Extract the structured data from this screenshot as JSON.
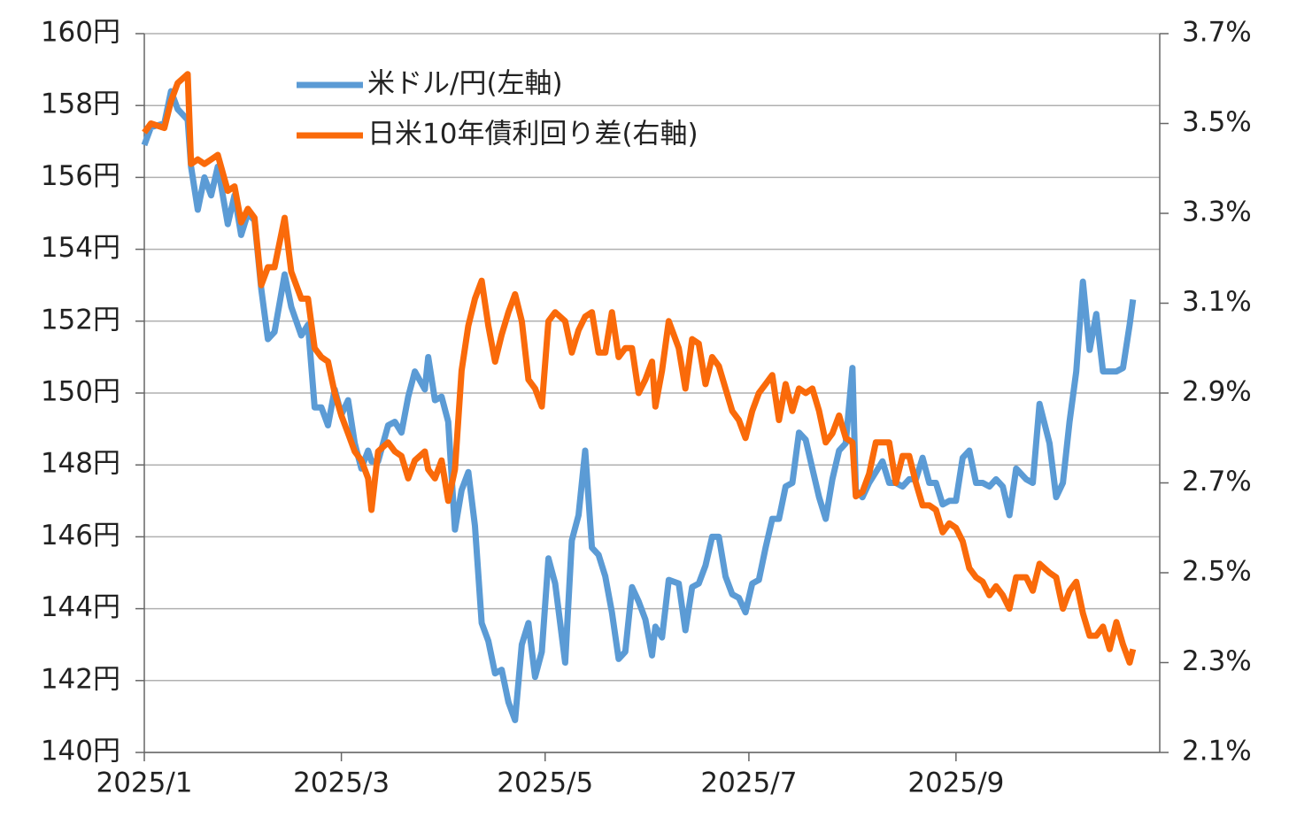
{
  "chart_data": {
    "type": "line",
    "legend": "upper left",
    "grid": true,
    "x": [
      0,
      2,
      6,
      8,
      10,
      13,
      14,
      16,
      18,
      20,
      22,
      25,
      27,
      29,
      31,
      33,
      35,
      37,
      39,
      42,
      44,
      47,
      49,
      51,
      53,
      55,
      57,
      59,
      61,
      63,
      65,
      67,
      68,
      70,
      73,
      75,
      77,
      79,
      81,
      84,
      85,
      87,
      89,
      91,
      93,
      95,
      97,
      99,
      101,
      103,
      105,
      107,
      109,
      111,
      113,
      115,
      117,
      119,
      121,
      123,
      126,
      128,
      130,
      132,
      134,
      136,
      138,
      140,
      142,
      144,
      146,
      148,
      150,
      152,
      153,
      155,
      157,
      160,
      162,
      164,
      166,
      168,
      170,
      172,
      174,
      176,
      178,
      180,
      182,
      184,
      186,
      188,
      190,
      192,
      194,
      196,
      198,
      200,
      202,
      204,
      206,
      208,
      210,
      212,
      213,
      215,
      217,
      219,
      221,
      223,
      225,
      227,
      229,
      231,
      233,
      235,
      237,
      239,
      241,
      243,
      245,
      247,
      249,
      251,
      253,
      255,
      257,
      259,
      261,
      264,
      266,
      268,
      271,
      273,
      275,
      277,
      279,
      281,
      283,
      285,
      287,
      289,
      291,
      293,
      295,
      296
    ],
    "xlim": [
      0,
      304
    ],
    "xticks": [
      {
        "value": 0,
        "label": "2025/1"
      },
      {
        "value": 59,
        "label": "2025/3"
      },
      {
        "value": 120,
        "label": "2025/5"
      },
      {
        "value": 181,
        "label": "2025/7"
      },
      {
        "value": 243,
        "label": "2025/9"
      }
    ],
    "ylim": [
      140,
      160
    ],
    "yticks": [
      {
        "value": 140,
        "label": "140円"
      },
      {
        "value": 142,
        "label": "142円"
      },
      {
        "value": 144,
        "label": "144円"
      },
      {
        "value": 146,
        "label": "146円"
      },
      {
        "value": 148,
        "label": "148円"
      },
      {
        "value": 150,
        "label": "150円"
      },
      {
        "value": 152,
        "label": "152円"
      },
      {
        "value": 154,
        "label": "154円"
      },
      {
        "value": 156,
        "label": "156円"
      },
      {
        "value": 158,
        "label": "158円"
      },
      {
        "value": 160,
        "label": "160円"
      }
    ],
    "y2lim": [
      2.1,
      3.7
    ],
    "y2ticks": [
      {
        "value": 2.1,
        "label": "2.1%"
      },
      {
        "value": 2.3,
        "label": "2.3%"
      },
      {
        "value": 2.5,
        "label": "2.5%"
      },
      {
        "value": 2.7,
        "label": "2.7%"
      },
      {
        "value": 2.9,
        "label": "2.9%"
      },
      {
        "value": 3.1,
        "label": "3.1%"
      },
      {
        "value": 3.3,
        "label": "3.3%"
      },
      {
        "value": 3.5,
        "label": "3.5%"
      },
      {
        "value": 3.7,
        "label": "3.7%"
      }
    ],
    "series": [
      {
        "name": "米ドル/円(左軸)",
        "color": "#5b9bd5",
        "values": [
          156.9,
          157.4,
          157.5,
          158.4,
          157.9,
          157.6,
          156.3,
          155.1,
          156.0,
          155.5,
          156.3,
          154.7,
          155.5,
          154.4,
          155.0,
          154.8,
          152.9,
          151.5,
          151.7,
          153.3,
          152.4,
          151.6,
          151.9,
          149.6,
          149.6,
          149.1,
          150.1,
          149.4,
          149.8,
          148.6,
          147.9,
          148.4,
          148.1,
          148.1,
          149.1,
          149.2,
          148.9,
          149.9,
          150.6,
          150.1,
          151.0,
          149.8,
          149.9,
          149.2,
          146.2,
          147.3,
          147.8,
          146.3,
          143.6,
          143.1,
          142.2,
          142.3,
          141.4,
          140.9,
          143.0,
          143.6,
          142.1,
          142.8,
          145.4,
          144.7,
          142.5,
          145.9,
          146.6,
          148.4,
          145.7,
          145.5,
          144.9,
          143.9,
          142.6,
          142.8,
          144.6,
          144.2,
          143.7,
          142.7,
          143.5,
          143.2,
          144.8,
          144.7,
          143.4,
          144.6,
          144.7,
          145.2,
          146.0,
          146.0,
          144.9,
          144.4,
          144.3,
          143.9,
          144.7,
          144.8,
          145.7,
          146.5,
          146.5,
          147.4,
          147.5,
          148.9,
          148.7,
          147.9,
          147.1,
          146.5,
          147.6,
          148.4,
          148.6,
          150.7,
          147.3,
          147.1,
          147.5,
          147.8,
          148.1,
          147.5,
          147.5,
          147.4,
          147.6,
          147.6,
          148.2,
          147.5,
          147.5,
          146.9,
          147.0,
          147.0,
          148.2,
          148.4,
          147.5,
          147.5,
          147.4,
          147.6,
          147.4,
          146.6,
          147.9,
          147.6,
          147.5,
          149.7,
          148.6,
          147.1,
          147.5,
          149.2,
          150.6,
          153.1,
          151.2,
          152.2,
          150.6,
          150.6,
          150.6,
          150.7,
          151.9,
          152.6
        ]
      },
      {
        "name": "日米10年債利回り差(右軸)",
        "color": "#fa6a0a",
        "axis": "y2",
        "values": [
          3.48,
          3.5,
          3.49,
          3.55,
          3.59,
          3.61,
          3.41,
          3.42,
          3.41,
          3.42,
          3.43,
          3.35,
          3.36,
          3.28,
          3.31,
          3.29,
          3.14,
          3.18,
          3.18,
          3.29,
          3.17,
          3.11,
          3.11,
          3.0,
          2.98,
          2.97,
          2.9,
          2.85,
          2.81,
          2.77,
          2.75,
          2.71,
          2.64,
          2.77,
          2.79,
          2.77,
          2.76,
          2.71,
          2.75,
          2.77,
          2.73,
          2.71,
          2.75,
          2.66,
          2.73,
          2.95,
          3.05,
          3.11,
          3.15,
          3.05,
          2.97,
          3.03,
          3.08,
          3.12,
          3.06,
          2.93,
          2.91,
          2.87,
          3.06,
          3.08,
          3.06,
          2.99,
          3.04,
          3.07,
          3.08,
          2.99,
          2.99,
          3.08,
          2.98,
          3.0,
          3.0,
          2.9,
          2.93,
          2.97,
          2.87,
          2.95,
          3.06,
          3.0,
          2.91,
          3.02,
          3.01,
          2.92,
          2.98,
          2.96,
          2.91,
          2.86,
          2.84,
          2.8,
          2.86,
          2.9,
          2.92,
          2.94,
          2.84,
          2.92,
          2.86,
          2.91,
          2.9,
          2.91,
          2.86,
          2.79,
          2.81,
          2.85,
          2.8,
          2.79,
          2.67,
          2.68,
          2.72,
          2.79,
          2.79,
          2.79,
          2.7,
          2.76,
          2.76,
          2.7,
          2.65,
          2.65,
          2.64,
          2.59,
          2.61,
          2.6,
          2.57,
          2.51,
          2.49,
          2.48,
          2.45,
          2.47,
          2.45,
          2.42,
          2.49,
          2.49,
          2.46,
          2.52,
          2.5,
          2.49,
          2.42,
          2.46,
          2.48,
          2.41,
          2.36,
          2.36,
          2.38,
          2.33,
          2.39,
          2.34,
          2.3,
          2.33
        ]
      }
    ]
  }
}
